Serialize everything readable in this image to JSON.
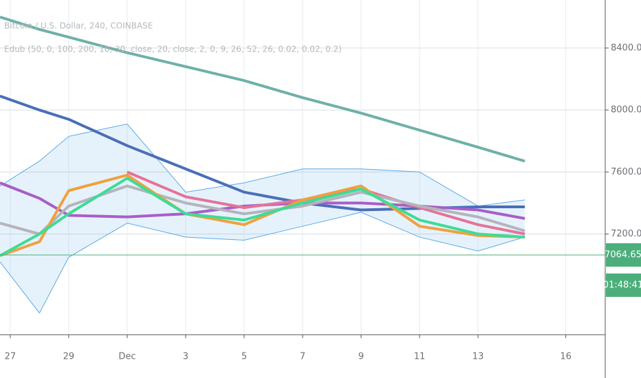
{
  "header": {
    "symbol": "Bitcoin / U.S. Dollar, 240, COINBASE",
    "indicator": "Edub (50, 0, 100, 200, 10, 30, close, 20, close, 2, 0, 9, 26, 52, 26, 0.02, 0.02, 0.2)"
  },
  "chart_data": {
    "type": "line",
    "x": [
      -0.35,
      1,
      2,
      4,
      6,
      8,
      10,
      12,
      14,
      16,
      17.6
    ],
    "xlim": [
      -0.35,
      20.35
    ],
    "xticks": [
      {
        "value": 0,
        "label": "27"
      },
      {
        "value": 2,
        "label": "29"
      },
      {
        "value": 4,
        "label": "Dec"
      },
      {
        "value": 6,
        "label": "3"
      },
      {
        "value": 8,
        "label": "5"
      },
      {
        "value": 10,
        "label": "7"
      },
      {
        "value": 12,
        "label": "9"
      },
      {
        "value": 14,
        "label": "11"
      },
      {
        "value": 16,
        "label": "13"
      },
      {
        "value": 19,
        "label": "16"
      }
    ],
    "ylim": [
      6550,
      8710
    ],
    "yticks": [
      {
        "value": 7200,
        "label": "7200.00"
      },
      {
        "value": 7600,
        "label": "7600.00"
      },
      {
        "value": 8000,
        "label": "8000.00"
      },
      {
        "value": 8400,
        "label": "8400.00"
      }
    ],
    "grid": true,
    "band": {
      "color": "#5aa9e6",
      "upper": [
        7510,
        7670,
        7830,
        7910,
        7470,
        7530,
        7620,
        7620,
        7600,
        7380,
        7420
      ],
      "lower": [
        7020,
        6690,
        7050,
        7270,
        7180,
        7160,
        7250,
        7340,
        7180,
        7090,
        7180
      ]
    },
    "series": [
      {
        "color": "#6fb0a8",
        "values": [
          8600,
          8520,
          8470,
          8370,
          8280,
          8190,
          8080,
          7980,
          7870,
          7760,
          7670
        ]
      },
      {
        "color": "#4a6fb8",
        "values": [
          8090,
          8000,
          7940,
          7770,
          7620,
          7470,
          7400,
          7355,
          7365,
          7375,
          7375
        ]
      },
      {
        "color": "#a85ec8",
        "values": [
          7530,
          7430,
          7320,
          7310,
          7330,
          7380,
          7400,
          7400,
          7380,
          7355,
          7300
        ]
      },
      {
        "color": "#e57399",
        "values": [
          null,
          null,
          null,
          7600,
          7440,
          7370,
          7420,
          7490,
          7370,
          7260,
          7200
        ]
      },
      {
        "color": "#b4b4bc",
        "values": [
          7270,
          7200,
          7380,
          7510,
          7400,
          7330,
          7380,
          7470,
          7380,
          7310,
          7220
        ]
      },
      {
        "color": "#f0a040",
        "values": [
          7060,
          7150,
          7480,
          7580,
          7330,
          7260,
          7420,
          7510,
          7250,
          7190,
          7180
        ]
      },
      {
        "color": "#3ddc97",
        "values": [
          7060,
          7200,
          7330,
          7560,
          7330,
          7290,
          7400,
          7490,
          7290,
          7200,
          7180
        ]
      }
    ],
    "current_price": 7064.65,
    "countdown": "01:48:41",
    "price_color": "#4cae7a"
  }
}
